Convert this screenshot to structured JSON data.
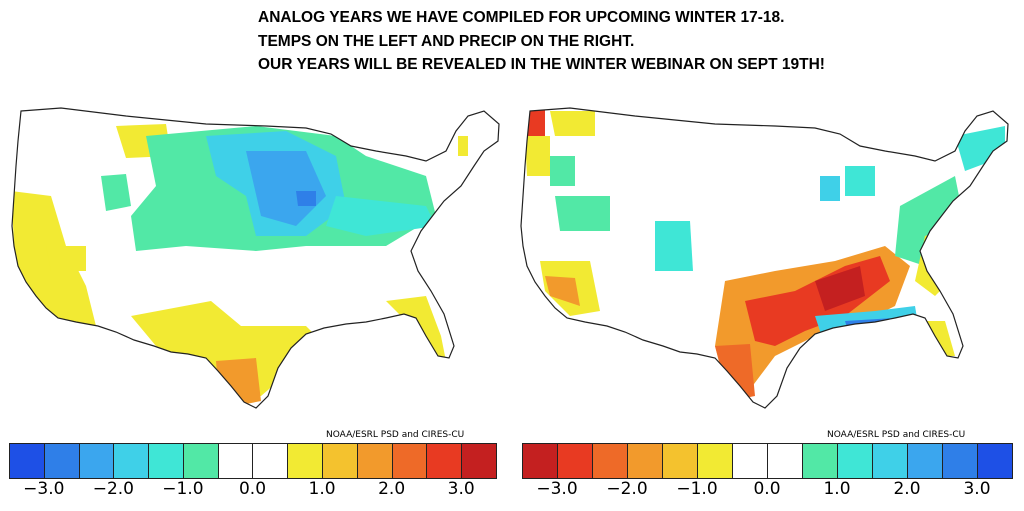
{
  "header": {
    "line1": "ANALOG YEARS WE HAVE COMPILED FOR UPCOMING WINTER 17-18.",
    "line2": "TEMPS ON THE LEFT AND PRECIP ON THE RIGHT.",
    "line3": "OUR YEARS WILL BE REVEALED IN THE WINTER WEBINAR ON SEPT 19TH!"
  },
  "maps": {
    "left": {
      "variable": "Temperature",
      "credit": "NOAA/ESRL PSD and CIRES-CU"
    },
    "right": {
      "variable": "Precipitation",
      "credit": "NOAA/ESRL PSD and CIRES-CU"
    }
  },
  "colors": {
    "temp_scale": [
      "#1e50e6",
      "#2f7fe8",
      "#3ba6ee",
      "#3fd0e8",
      "#3fe6d6",
      "#52e8a6",
      "#ffffff",
      "#ffffff",
      "#f2ea33",
      "#f4c22e",
      "#f29a2c",
      "#ee6a28",
      "#e83a22",
      "#c42020"
    ],
    "precip_scale": [
      "#c42020",
      "#e83a22",
      "#ee6a28",
      "#f29a2c",
      "#f4c22e",
      "#f2ea33",
      "#ffffff",
      "#ffffff",
      "#52e8a6",
      "#3fe6d6",
      "#3fd0e8",
      "#3ba6ee",
      "#2f7fe8",
      "#1e50e6"
    ]
  },
  "scales": {
    "left": {
      "ticks": [
        "−3.0",
        "−2.0",
        "−1.0",
        "0.0",
        "1.0",
        "2.0",
        "3.0"
      ]
    },
    "right": {
      "ticks": [
        "−3.0",
        "−2.0",
        "−1.0",
        "0.0",
        "1.0",
        "2.0",
        "3.0"
      ]
    }
  }
}
